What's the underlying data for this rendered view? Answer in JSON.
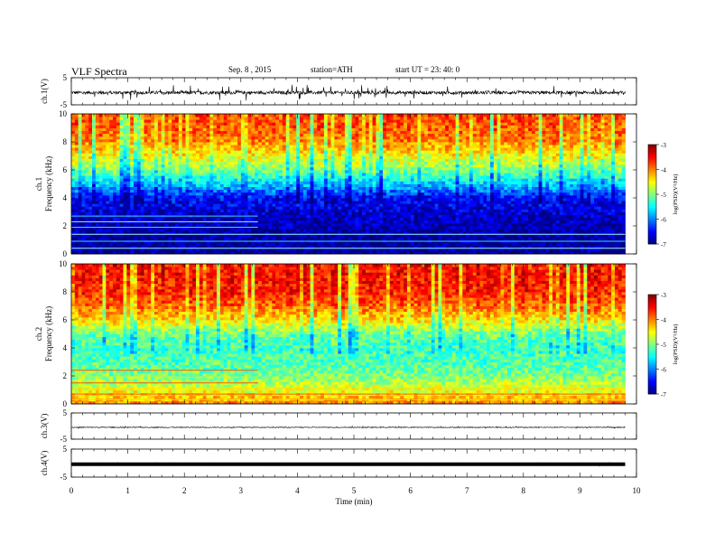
{
  "header": {
    "title": "VLF Spectra",
    "date": "Sep. 8 , 2015",
    "station": "station=ATH",
    "start": "start UT =  23: 40: 0"
  },
  "chart_data": [
    {
      "type": "line",
      "panel": "ch1-waveform",
      "ylabel": "ch.1(V)",
      "ylim": [
        -5,
        5
      ],
      "y_ticks": [
        "5",
        "-5"
      ],
      "xlim": [
        0,
        10
      ],
      "data_extent_min": [
        0,
        9.8
      ],
      "baseline": -0.5,
      "noise_amplitude": 0.6,
      "spike_amplitude": 2.5
    },
    {
      "type": "heatmap",
      "panel": "ch1-spectrogram",
      "ylabel": "ch.1\nFrequency (kHz)",
      "ylim": [
        0,
        10
      ],
      "y_ticks": [
        "0",
        "2",
        "4",
        "6",
        "8",
        "10"
      ],
      "xlim": [
        0,
        10
      ],
      "colorbar": {
        "label": "log(PSD)(V²/Hz)",
        "range": [
          -7,
          -3
        ],
        "ticks": [
          "-3",
          "-4",
          "-5",
          "-6",
          "-7"
        ]
      },
      "freq_profile_kHz": [
        0,
        1,
        2,
        3,
        4,
        5,
        6,
        7,
        8,
        9,
        10
      ],
      "log_psd_profile": [
        -6.9,
        -6.9,
        -6.8,
        -6.7,
        -6.4,
        -5.6,
        -4.9,
        -4.4,
        -3.9,
        -3.7,
        -3.6
      ],
      "band_lines_kHz": [
        0.4,
        0.9,
        1.4,
        1.9,
        2.3,
        2.7
      ],
      "regime_change_min": 3.3
    },
    {
      "type": "heatmap",
      "panel": "ch2-spectrogram",
      "ylabel": "ch.2\nFrequency (kHz)",
      "ylim": [
        0,
        10
      ],
      "y_ticks": [
        "0",
        "2",
        "4",
        "6",
        "8",
        "10"
      ],
      "xlim": [
        0,
        10
      ],
      "colorbar": {
        "label": "log(PSD)(V²/Hz)",
        "range": [
          -7,
          -3
        ],
        "ticks": [
          "-3",
          "-4",
          "-5",
          "-6",
          "-7"
        ]
      },
      "freq_profile_kHz": [
        0,
        1,
        2,
        3,
        4,
        5,
        6,
        7,
        8,
        9,
        10
      ],
      "log_psd_profile": [
        -4.0,
        -4.6,
        -5.0,
        -5.2,
        -5.2,
        -5.0,
        -4.3,
        -3.8,
        -3.5,
        -3.4,
        -3.4
      ],
      "band_lines_kHz": [
        0.3,
        0.7,
        1.1,
        1.5,
        1.9,
        2.4
      ],
      "regime_change_min": 3.3
    },
    {
      "type": "line",
      "panel": "ch3-waveform",
      "ylabel": "ch.3(V)",
      "ylim": [
        -5,
        5
      ],
      "y_ticks": [
        "5",
        "-5"
      ],
      "xlim": [
        0,
        10
      ],
      "data_extent_min": [
        0,
        9.8
      ],
      "baseline": -0.5,
      "noise_amplitude": 0.15,
      "spike_amplitude": 0.3
    },
    {
      "type": "line",
      "panel": "ch4-waveform",
      "ylabel": "ch.4(V)",
      "ylim": [
        -5,
        5
      ],
      "y_ticks": [
        "5",
        "-5"
      ],
      "xlim": [
        0,
        10
      ],
      "data_extent_min": [
        0,
        9.8
      ],
      "baseline": -0.4,
      "noise_amplitude": 0.2,
      "spike_amplitude": 0.2
    }
  ],
  "x_axis": {
    "label": "Time (min)",
    "tick_labels": [
      "0",
      "1",
      "2",
      "3",
      "4",
      "5",
      "6",
      "7",
      "8",
      "9",
      "10"
    ]
  }
}
